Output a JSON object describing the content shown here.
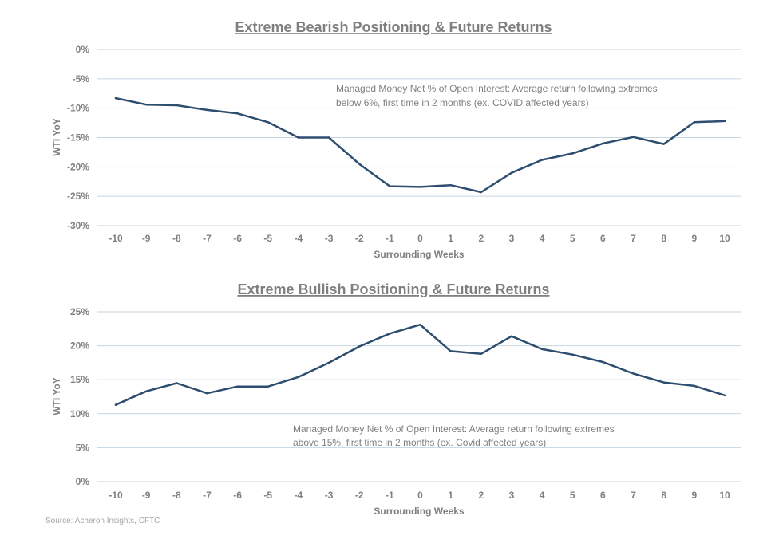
{
  "source": "Source: Acheron Insights, CFTC",
  "chart_data": [
    {
      "type": "line",
      "title": "Extreme Bearish Positioning & Future Returns",
      "xlabel": "Surrounding Weeks",
      "ylabel": "WTI YoY",
      "ylim": [
        -30,
        0
      ],
      "yticks": [
        "0%",
        "-5%",
        "-10%",
        "-15%",
        "-20%",
        "-25%",
        "-30%"
      ],
      "ytick_values": [
        0,
        -5,
        -10,
        -15,
        -20,
        -25,
        -30
      ],
      "categories": [
        "-10",
        "-9",
        "-8",
        "-7",
        "-6",
        "-5",
        "-4",
        "-3",
        "-2",
        "-1",
        "0",
        "1",
        "2",
        "3",
        "4",
        "5",
        "6",
        "7",
        "8",
        "9",
        "10"
      ],
      "series": [
        {
          "name": "WTI YoY",
          "color": "#2d4e6e",
          "values": [
            -8.3,
            -9.4,
            -9.5,
            -10.3,
            -10.9,
            -12.4,
            -15.0,
            -15.0,
            -19.5,
            -23.3,
            -23.4,
            -23.1,
            -24.3,
            -21.0,
            -18.8,
            -17.7,
            -16.0,
            -14.9,
            -16.1,
            -12.4,
            -12.2
          ]
        }
      ],
      "annotation": [
        "Managed Money Net % of Open Interest: Average return following extremes",
        "below 6%, first time in 2 months (ex. COVID affected years)"
      ]
    },
    {
      "type": "line",
      "title": "Extreme Bullish Positioning & Future Returns",
      "xlabel": "Surrounding Weeks",
      "ylabel": "WTI YoY",
      "ylim": [
        0,
        25
      ],
      "yticks": [
        "25%",
        "20%",
        "15%",
        "10%",
        "5%",
        "0%"
      ],
      "ytick_values": [
        25,
        20,
        15,
        10,
        5,
        0
      ],
      "categories": [
        "-10",
        "-9",
        "-8",
        "-7",
        "-6",
        "-5",
        "-4",
        "-3",
        "-2",
        "-1",
        "0",
        "1",
        "2",
        "3",
        "4",
        "5",
        "6",
        "7",
        "8",
        "9",
        "10"
      ],
      "series": [
        {
          "name": "WTI YoY",
          "color": "#2d4e6e",
          "values": [
            11.3,
            13.3,
            14.5,
            13.0,
            14.0,
            14.0,
            15.4,
            17.5,
            19.9,
            21.8,
            23.1,
            19.2,
            18.8,
            21.4,
            19.5,
            18.7,
            17.6,
            15.9,
            14.6,
            14.1,
            12.7
          ]
        }
      ],
      "annotation": [
        "Managed Money Net % of Open Interest: Average return following extremes",
        "above 15%, first time in 2 months (ex. Covid affected years)"
      ]
    }
  ]
}
